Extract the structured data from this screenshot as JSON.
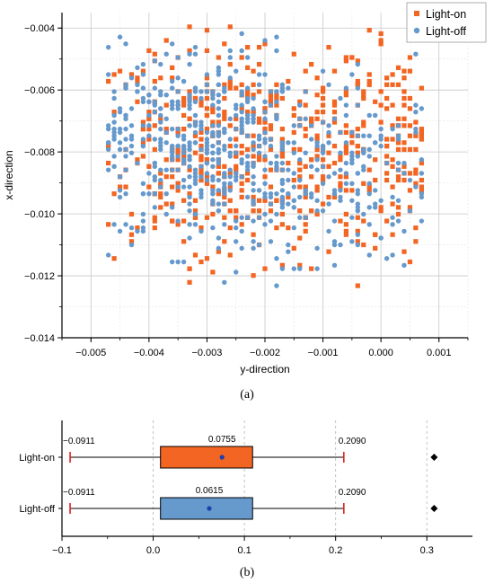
{
  "chart_data": [
    {
      "type": "scatter",
      "xlabel": "y-direction",
      "ylabel": "x-direction",
      "xlim": [
        -0.0055,
        0.0015
      ],
      "ylim": [
        -0.014,
        -0.0035
      ],
      "xticks": [
        "-0.005",
        "-0.004",
        "-0.003",
        "-0.002",
        "-0.001",
        "0.000",
        "0.001"
      ],
      "yticks": [
        "-0.004",
        "-0.006",
        "-0.008",
        "-0.010",
        "-0.012",
        "-0.014"
      ],
      "grid": true,
      "legend_position": "top-right",
      "caption": "(a)",
      "series": [
        {
          "name": "Light-on",
          "color": "#f26522",
          "marker": "square",
          "regions": [
            {
              "cx": -0.0022,
              "cy": -0.0078,
              "sx": 0.0011,
              "sy": 0.0019,
              "n": 290
            },
            {
              "cx": -0.0035,
              "cy": -0.0082,
              "sx": 0.0008,
              "sy": 0.0018,
              "n": 120
            },
            {
              "cx": -0.0005,
              "cy": -0.0082,
              "sx": 0.0009,
              "sy": 0.0017,
              "n": 110
            },
            {
              "cx": 0.0003,
              "cy": -0.008,
              "sx": 0.0003,
              "sy": 0.0016,
              "n": 75
            }
          ]
        },
        {
          "name": "Light-off",
          "color": "#6699cc",
          "marker": "circle",
          "regions": [
            {
              "cx": -0.0031,
              "cy": -0.0078,
              "sx": 0.0008,
              "sy": 0.0017,
              "n": 340
            },
            {
              "cx": -0.0019,
              "cy": -0.0085,
              "sx": 0.001,
              "sy": 0.0016,
              "n": 160
            },
            {
              "cx": -0.0002,
              "cy": -0.009,
              "sx": 0.0007,
              "sy": 0.0016,
              "n": 130
            },
            {
              "cx": -0.0044,
              "cy": -0.0075,
              "sx": 0.0003,
              "sy": 0.0012,
              "n": 55
            }
          ]
        }
      ]
    },
    {
      "type": "box",
      "xlim": [
        -0.1,
        0.35
      ],
      "xticks": [
        "-0.1",
        "0.0",
        "0.1",
        "0.2",
        "0.3"
      ],
      "caption": "(b)",
      "boxes": [
        {
          "name": "Light-on",
          "color": "#f26522",
          "min": -0.0911,
          "q1": 0.008,
          "q3": 0.109,
          "max": 0.209,
          "mean": 0.0755,
          "outlier": 0.308,
          "min_label": "-0.0911",
          "mean_label": "0.0755",
          "max_label": "0.2090"
        },
        {
          "name": "Light-off",
          "color": "#6699cc",
          "min": -0.0911,
          "q1": 0.008,
          "q3": 0.109,
          "max": 0.209,
          "mean": 0.0615,
          "outlier": 0.308,
          "min_label": "-0.0911",
          "mean_label": "0.0615",
          "max_label": "0.2090"
        }
      ]
    }
  ]
}
